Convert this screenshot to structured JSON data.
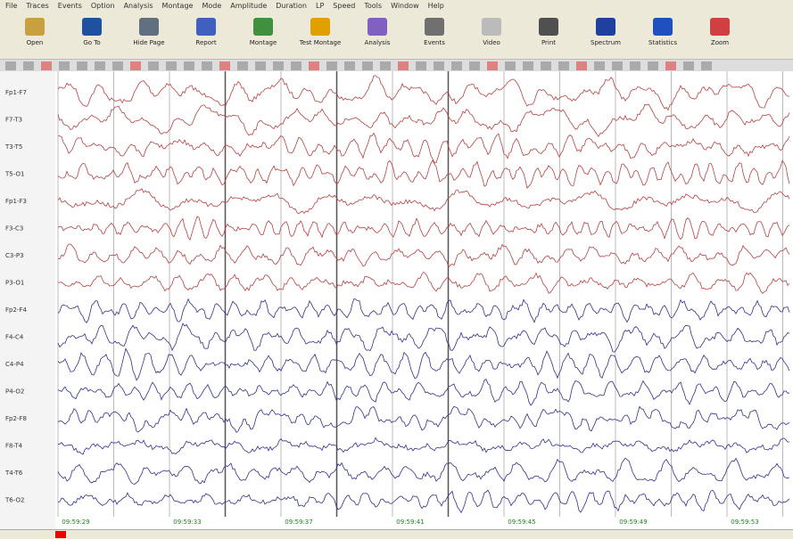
{
  "menu": [
    "File",
    "Traces",
    "Events",
    "Option",
    "Analysis",
    "Montage",
    "Mode",
    "Amplitude",
    "Duration",
    "LP",
    "Speed",
    "Tools",
    "Window",
    "Help"
  ],
  "toolbar": [
    "Open",
    "Go To",
    "Hide Page",
    "Report",
    "Montage",
    "Test Montage",
    "Analysis",
    "Events",
    "Video",
    "Print",
    "Spectrum",
    "Statistics",
    "Zoom"
  ],
  "channels": [
    "Fp1-F7",
    "F7-T3",
    "T3-T5",
    "T5-O1",
    "Fp1-F3",
    "F3-C3",
    "C3-P3",
    "P3-O1",
    "Fp2-F4",
    "F4-C4",
    "C4-P4",
    "P4-O2",
    "Fp2-F8",
    "F8-T4",
    "T4-T6",
    "T6-O2"
  ],
  "timestamps": [
    "09:59:29",
    "09:59:33",
    "09:59:37",
    "09:59:41",
    "09:59:45",
    "09:59:49",
    "09:59:53"
  ]
}
